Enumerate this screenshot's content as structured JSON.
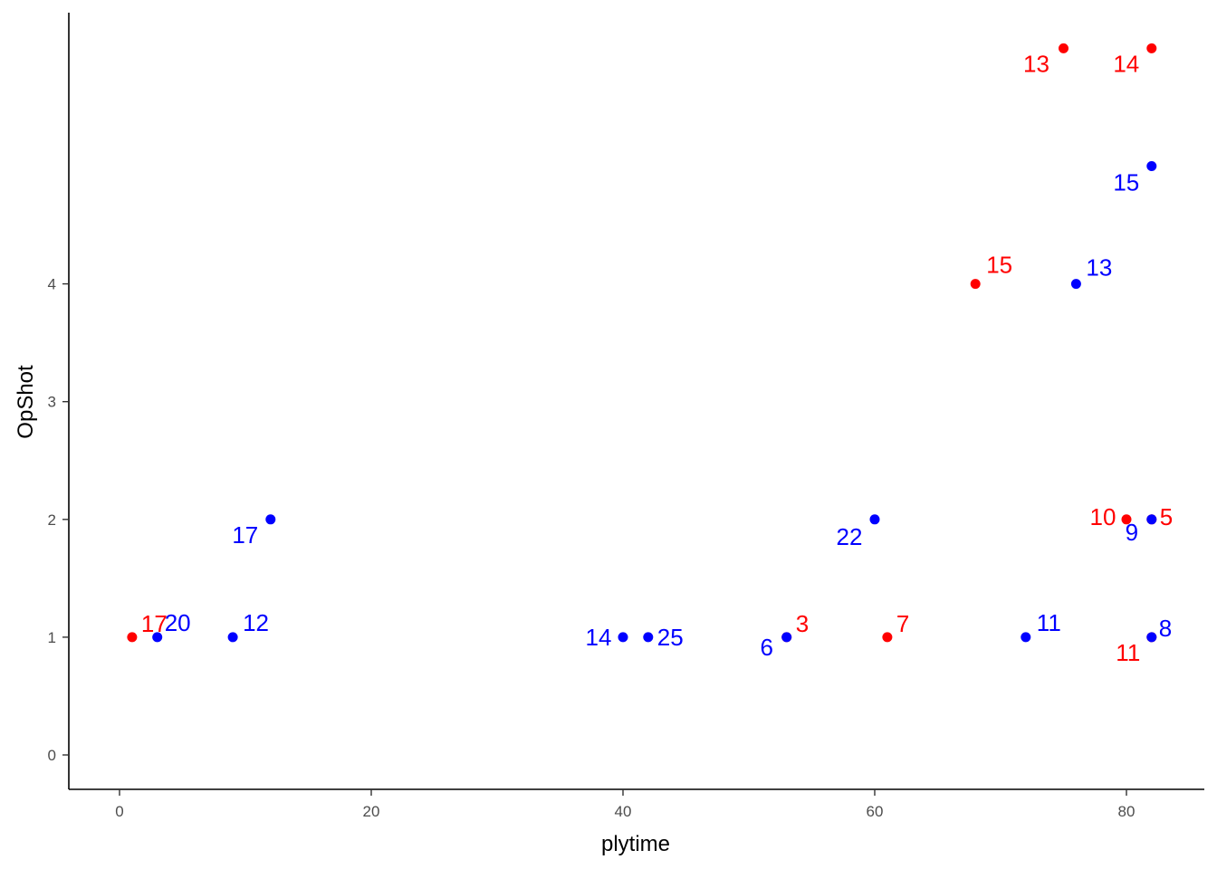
{
  "chart_data": {
    "type": "scatter",
    "xlabel": "plytime",
    "ylabel": "OpShot",
    "xlim": [
      -4,
      86
    ],
    "ylim": [
      -0.3,
      6.3
    ],
    "x_ticks": [
      0,
      20,
      40,
      60,
      80
    ],
    "y_ticks": [
      0,
      1,
      2,
      3,
      4
    ],
    "grid": false,
    "legend": "none",
    "series": [
      {
        "color": "#ff0000",
        "points": [
          {
            "x": 1,
            "y": 1,
            "label": "17"
          },
          {
            "x": 53,
            "y": 1,
            "label": "3"
          },
          {
            "x": 61,
            "y": 1,
            "label": "7"
          },
          {
            "x": 82,
            "y": 1,
            "label": "11"
          },
          {
            "x": 80,
            "y": 2,
            "label": "10"
          },
          {
            "x": 82,
            "y": 2,
            "label": "5"
          },
          {
            "x": 68,
            "y": 4,
            "label": "15"
          },
          {
            "x": 75,
            "y": 6,
            "label": "13"
          },
          {
            "x": 82,
            "y": 6,
            "label": "14"
          }
        ]
      },
      {
        "color": "#0000ff",
        "points": [
          {
            "x": 3,
            "y": 1,
            "label": "20"
          },
          {
            "x": 9,
            "y": 1,
            "label": "12"
          },
          {
            "x": 12,
            "y": 2,
            "label": "17"
          },
          {
            "x": 40,
            "y": 1,
            "label": "14"
          },
          {
            "x": 42,
            "y": 1,
            "label": "25"
          },
          {
            "x": 53,
            "y": 1,
            "label": "6"
          },
          {
            "x": 60,
            "y": 2,
            "label": "22"
          },
          {
            "x": 72,
            "y": 1,
            "label": "11"
          },
          {
            "x": 76,
            "y": 4,
            "label": "13"
          },
          {
            "x": 82,
            "y": 5,
            "label": "15"
          },
          {
            "x": 82,
            "y": 2,
            "label": "9"
          },
          {
            "x": 82,
            "y": 1,
            "label": "8"
          }
        ]
      }
    ]
  }
}
